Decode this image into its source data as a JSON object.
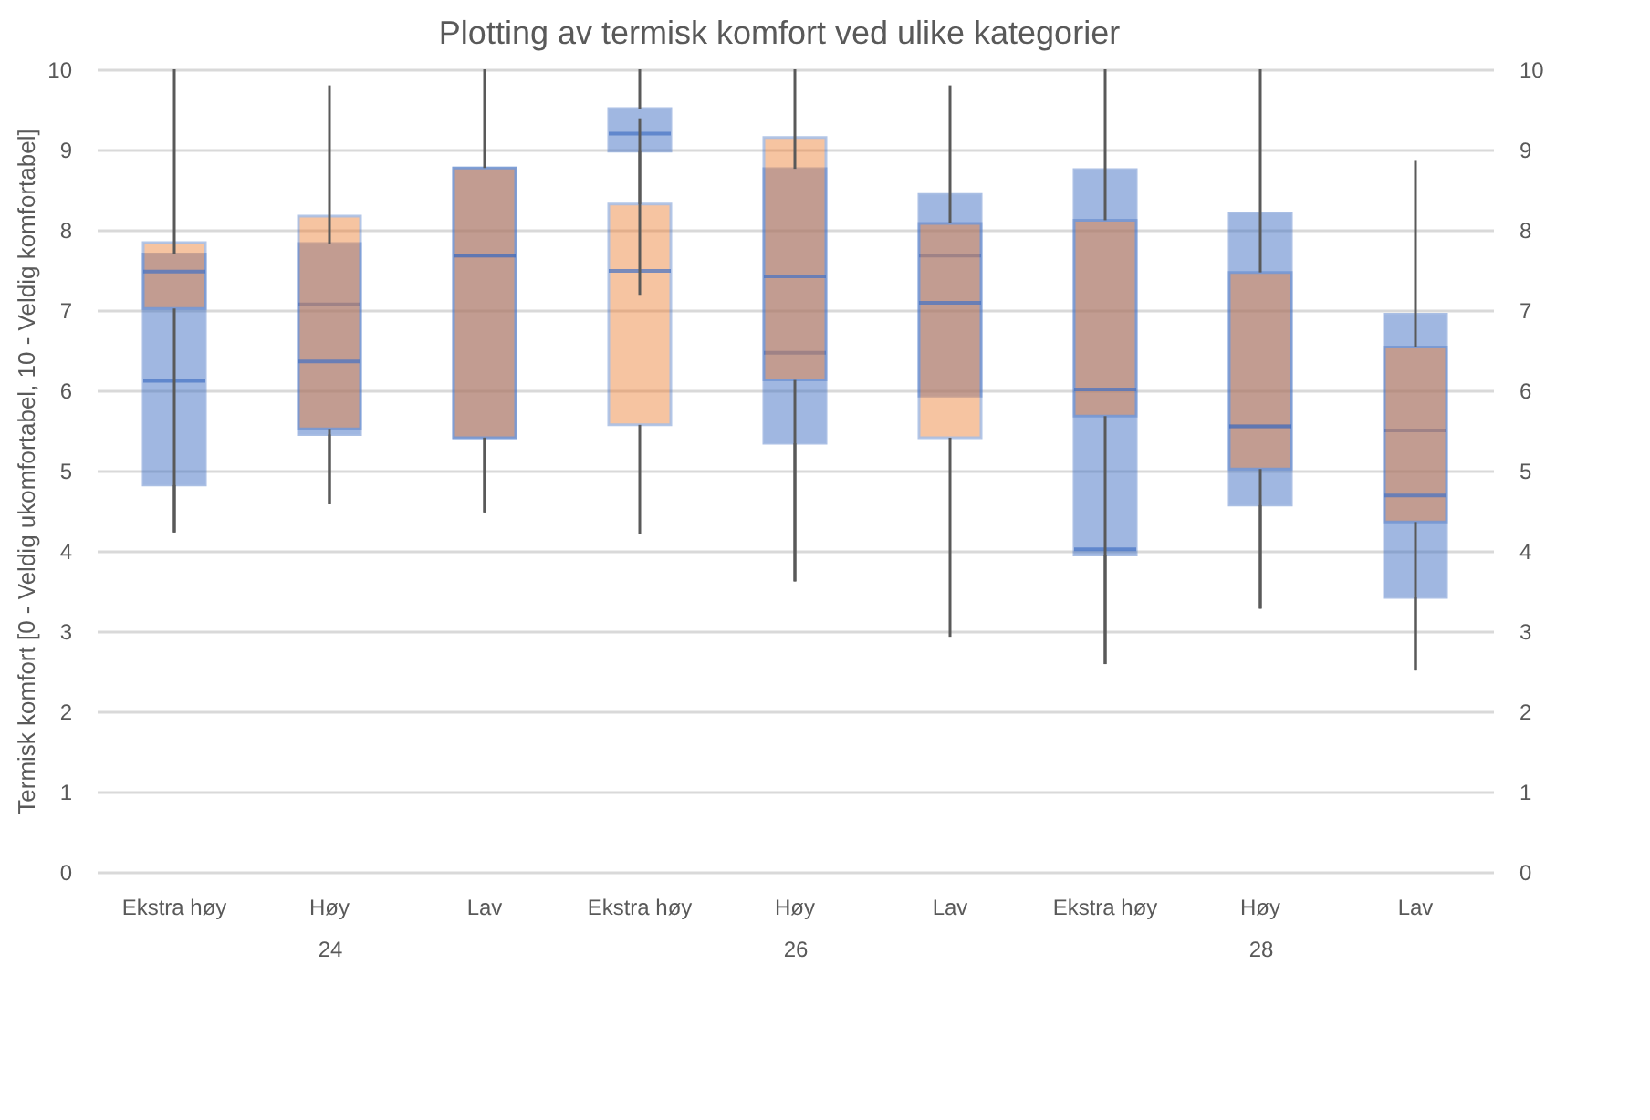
{
  "chart_data": [
    {
      "type": "box",
      "title": "Plotting av termisk komfort ved ulike kategorier",
      "ylabel": "Termisk komfort [0 - Veldig ukomfortabel, 10 - Veldig komfortabel]",
      "xlabel": "24",
      "categories": [
        "Ekstra høy",
        "Høy",
        "Lav"
      ],
      "ylim": [
        0,
        10
      ],
      "yticks": [
        0,
        1,
        2,
        3,
        4,
        5,
        6,
        7,
        8,
        9,
        10
      ],
      "grid": "y",
      "series": [
        {
          "color": "#4472c4",
          "boxes": [
            {
              "low": 4.23,
              "q1": 4.82,
              "median": 6.12,
              "q3": 7.7,
              "high": 10
            },
            {
              "low": 4.58,
              "q1": 5.45,
              "median": 7.07,
              "q3": 7.83,
              "high": 9.8
            },
            {
              "low": 4.48,
              "q1": 5.41,
              "median": 7.68,
              "q3": 8.77,
              "high": 10
            }
          ]
        },
        {
          "color": "#ed7d31",
          "boxes": [
            {
              "low": 4.23,
              "q1": 7.02,
              "median": 7.48,
              "q3": 7.84,
              "high": 7.84
            },
            {
              "low": 4.58,
              "q1": 5.52,
              "median": 6.36,
              "q3": 8.17,
              "high": 8.17
            },
            {
              "low": 4.48,
              "q1": 5.41,
              "median": 7.68,
              "q3": 8.77,
              "high": 8.77
            }
          ]
        }
      ]
    },
    {
      "type": "box",
      "xlabel": "26",
      "categories": [
        "Ekstra høy",
        "Høy",
        "Lav"
      ],
      "ylim": [
        0,
        10
      ],
      "yticks": [
        0,
        1,
        2,
        3,
        4,
        5,
        6,
        7,
        8,
        9,
        10
      ],
      "tick_labels": "x",
      "grid": "y",
      "series": [
        {
          "color": "#4472c4",
          "boxes": [
            {
              "low": 7.19,
              "q1": 8.98,
              "median": 9.2,
              "q3": 9.51,
              "high": 10
            },
            {
              "low": 3.62,
              "q1": 5.34,
              "median": 6.47,
              "q3": 8.76,
              "high": 10
            },
            {
              "low": 5.93,
              "q1": 5.93,
              "median": 7.68,
              "q3": 8.44,
              "high": 8.44
            }
          ]
        },
        {
          "color": "#ed7d31",
          "boxes": [
            {
              "low": 4.21,
              "q1": 5.57,
              "median": 7.49,
              "q3": 8.32,
              "high": 9.39
            },
            {
              "low": 3.62,
              "q1": 6.13,
              "median": 7.42,
              "q3": 9.15,
              "high": 9.15
            },
            {
              "low": 2.93,
              "q1": 5.41,
              "median": 7.09,
              "q3": 8.08,
              "high": 9.8
            }
          ]
        }
      ]
    },
    {
      "type": "box",
      "xlabel": "28",
      "categories": [
        "Ekstra høy",
        "Høy",
        "Lav"
      ],
      "y2lim": [
        0,
        10
      ],
      "y2ticks": [
        0,
        1,
        2,
        3,
        4,
        5,
        6,
        7,
        8,
        9,
        10
      ],
      "grid": "y",
      "series": [
        {
          "axis": "y2",
          "color": "#4472c4",
          "boxes": [
            {
              "low": 2.59,
              "q1": 3.95,
              "median": 4.02,
              "q3": 8.75,
              "high": 8.75
            },
            {
              "low": 3.28,
              "q1": 4.57,
              "median": 5.55,
              "q3": 8.21,
              "high": 8.21
            },
            {
              "low": 2.51,
              "q1": 3.42,
              "median": 5.5,
              "q3": 6.95,
              "high": 6.95
            }
          ]
        },
        {
          "axis": "y2",
          "color": "#ed7d31",
          "boxes": [
            {
              "low": 2.59,
              "q1": 5.68,
              "median": 6.01,
              "q3": 8.12,
              "high": 10
            },
            {
              "low": 3.28,
              "q1": 5.02,
              "median": 5.55,
              "q3": 7.47,
              "high": 10
            },
            {
              "low": 2.51,
              "q1": 4.36,
              "median": 4.69,
              "q3": 6.54,
              "high": 8.87
            }
          ]
        }
      ]
    }
  ]
}
